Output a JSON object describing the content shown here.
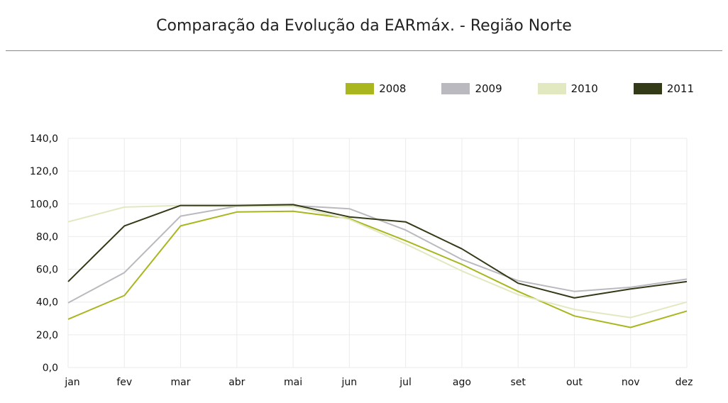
{
  "title": "Comparação da Evolução da EARmáx. - Região Norte",
  "chart_data": {
    "type": "line",
    "categories": [
      "jan",
      "fev",
      "mar",
      "abr",
      "mai",
      "jun",
      "jul",
      "ago",
      "set",
      "out",
      "nov",
      "dez"
    ],
    "ylim": [
      0,
      140
    ],
    "yticks": [
      "0,0",
      "20,0",
      "40,0",
      "60,0",
      "80,0",
      "100,0",
      "120,0",
      "140,0"
    ],
    "grid": true,
    "legend_position": "top-right",
    "series": [
      {
        "name": "2008",
        "color": "#aab61e",
        "values": [
          29.5,
          44,
          86.5,
          95,
          95.5,
          91,
          77.5,
          63,
          46.5,
          31.5,
          24.5,
          34.5
        ]
      },
      {
        "name": "2009",
        "color": "#b9b9bf",
        "values": [
          39.5,
          58,
          92.5,
          98.5,
          99,
          97,
          84,
          66,
          53,
          46.5,
          49,
          54
        ]
      },
      {
        "name": "2010",
        "color": "#e2e8c0",
        "values": [
          89,
          98,
          99,
          98.5,
          98.5,
          90.5,
          75.5,
          59,
          44.5,
          35.5,
          30.5,
          40
        ]
      },
      {
        "name": "2011",
        "color": "#333a18",
        "values": [
          52.5,
          86.5,
          99,
          99,
          99.5,
          92,
          89,
          72.5,
          51.5,
          42.5,
          48,
          52.5
        ]
      }
    ]
  }
}
